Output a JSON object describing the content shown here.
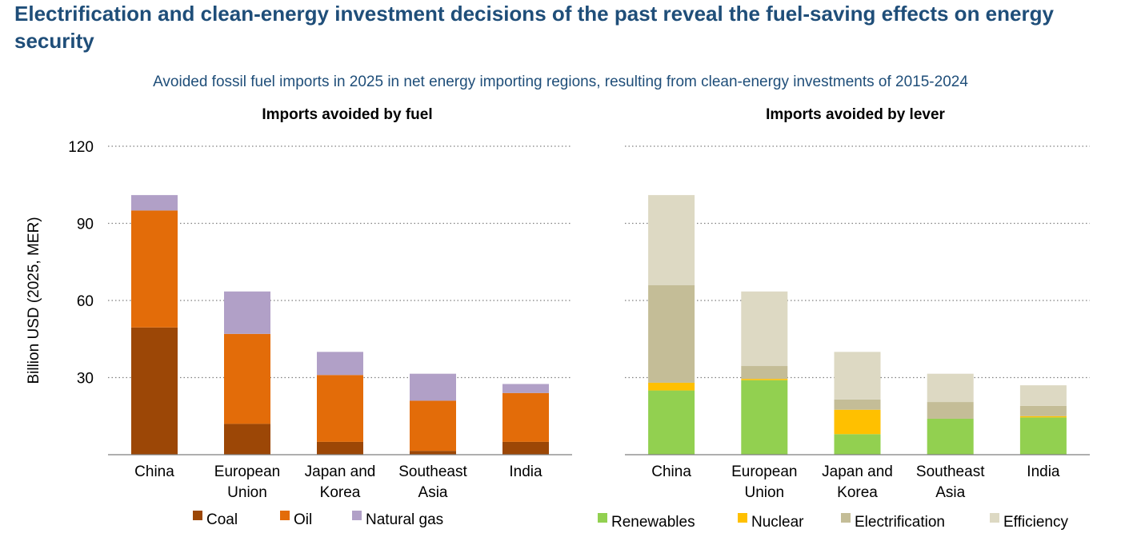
{
  "title": "Electrification and clean-energy investment decisions of the past reveal the fuel-saving effects on energy security",
  "subtitle": "Avoided fossil fuel imports in 2025 in net energy importing regions, resulting from clean-energy investments of 2015-2024",
  "chart_data": [
    {
      "type": "bar",
      "stacked": true,
      "title": "Imports avoided by fuel",
      "ylabel": "Billion USD (2025, MER)",
      "ylim": [
        0,
        120
      ],
      "yticks": [
        30,
        60,
        90,
        120
      ],
      "grid": true,
      "legend": "bottom",
      "categories": [
        [
          "China"
        ],
        [
          "European",
          "Union"
        ],
        [
          "Japan and",
          "Korea"
        ],
        [
          "Southeast",
          "Asia"
        ],
        [
          "India"
        ]
      ],
      "series": [
        {
          "name": "Coal",
          "color": "#9c4706",
          "values": [
            49.5,
            12,
            5,
            1.5,
            5
          ]
        },
        {
          "name": "Oil",
          "color": "#e36c09",
          "values": [
            45.5,
            35,
            26,
            19.5,
            19
          ]
        },
        {
          "name": "Natural gas",
          "color": "#b1a0c7",
          "values": [
            6,
            16.5,
            9,
            10.5,
            3.5
          ]
        }
      ]
    },
    {
      "type": "bar",
      "stacked": true,
      "title": "Imports avoided by lever",
      "ylim": [
        0,
        120
      ],
      "grid": true,
      "legend": "bottom",
      "categories": [
        [
          "China"
        ],
        [
          "European",
          "Union"
        ],
        [
          "Japan and",
          "Korea"
        ],
        [
          "Southeast",
          "Asia"
        ],
        [
          "India"
        ]
      ],
      "series": [
        {
          "name": "Renewables",
          "color": "#92d050",
          "values": [
            25,
            29,
            8,
            14,
            14.5
          ]
        },
        {
          "name": "Nuclear",
          "color": "#ffc000",
          "values": [
            3,
            0.5,
            9.5,
            0,
            0.5
          ]
        },
        {
          "name": "Electrification",
          "color": "#c4bd97",
          "values": [
            38,
            5,
            4,
            6.5,
            4
          ]
        },
        {
          "name": "Efficiency",
          "color": "#ddd9c3",
          "values": [
            35,
            29,
            18.5,
            11,
            8
          ]
        }
      ]
    }
  ]
}
